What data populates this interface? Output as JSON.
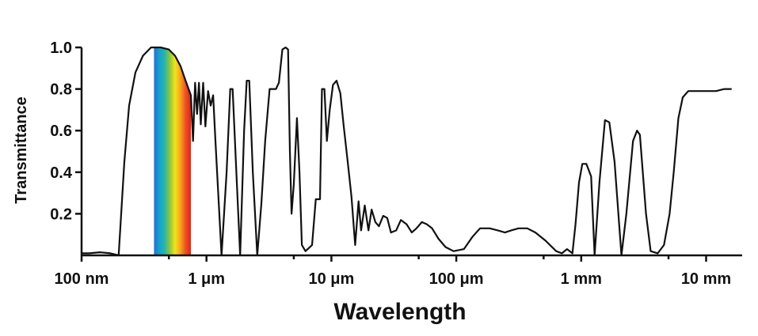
{
  "chart_data": {
    "type": "line",
    "xlabel": "Wavelength",
    "ylabel": "Transmittance",
    "x_scale": "log",
    "x_unit": "m",
    "xlim": [
      1e-07,
      0.016
    ],
    "ylim": [
      0,
      1.0
    ],
    "y_ticks": [
      {
        "value": 0.2,
        "label": "0.2"
      },
      {
        "value": 0.4,
        "label": "0.4"
      },
      {
        "value": 0.6,
        "label": "0.6"
      },
      {
        "value": 0.8,
        "label": "0.8"
      },
      {
        "value": 1.0,
        "label": "1.0"
      }
    ],
    "x_ticks": [
      {
        "value": 1e-07,
        "label": "100 nm"
      },
      {
        "value": 1e-06,
        "label": "1 μm"
      },
      {
        "value": 1e-05,
        "label": "10 μm"
      },
      {
        "value": 0.0001,
        "label": "100 μm"
      },
      {
        "value": 0.001,
        "label": "1 mm"
      },
      {
        "value": 0.01,
        "label": "10 mm"
      }
    ],
    "visible_band": {
      "range": [
        3.8e-07,
        7.5e-07
      ],
      "colors": [
        "#2a6fc9",
        "#12a3d0",
        "#2bb3a8",
        "#8ec63f",
        "#f2e41c",
        "#f7a51c",
        "#ee4f23",
        "#d7261e"
      ]
    },
    "line_color": "#111111",
    "grid": false,
    "series": [
      {
        "values": [
          [
            1e-07,
            0.01
          ],
          [
            1.15e-07,
            0.01
          ],
          [
            1.4e-07,
            0.015
          ],
          [
            1.7e-07,
            0.01
          ],
          [
            1.98e-07,
            0.0
          ],
          [
            2.2e-07,
            0.45
          ],
          [
            2.4e-07,
            0.72
          ],
          [
            2.7e-07,
            0.88
          ],
          [
            3.1e-07,
            0.96
          ],
          [
            3.6e-07,
            1.0
          ],
          [
            4.3e-07,
            1.0
          ],
          [
            5e-07,
            0.99
          ],
          [
            5.6e-07,
            0.96
          ],
          [
            6.2e-07,
            0.91
          ],
          [
            6.8e-07,
            0.84
          ],
          [
            7.5e-07,
            0.77
          ],
          [
            7.8e-07,
            0.55
          ],
          [
            8.1e-07,
            0.83
          ],
          [
            8.4e-07,
            0.68
          ],
          [
            8.7e-07,
            0.83
          ],
          [
            9e-07,
            0.63
          ],
          [
            9.4e-07,
            0.83
          ],
          [
            9.8e-07,
            0.62
          ],
          [
            1.03e-06,
            0.79
          ],
          [
            1.08e-06,
            0.72
          ],
          [
            1.13e-06,
            0.77
          ],
          [
            1.18e-06,
            0.55
          ],
          [
            1.32e-06,
            0.0
          ],
          [
            1.45e-06,
            0.4
          ],
          [
            1.55e-06,
            0.8
          ],
          [
            1.62e-06,
            0.8
          ],
          [
            1.75e-06,
            0.35
          ],
          [
            1.86e-06,
            0.0
          ],
          [
            2e-06,
            0.6
          ],
          [
            2.1e-06,
            0.84
          ],
          [
            2.2e-06,
            0.84
          ],
          [
            2.35e-06,
            0.4
          ],
          [
            2.55e-06,
            0.0
          ],
          [
            2.75e-06,
            0.25
          ],
          [
            2.95e-06,
            0.55
          ],
          [
            3.2e-06,
            0.8
          ],
          [
            3.6e-06,
            0.8
          ],
          [
            3.8e-06,
            0.83
          ],
          [
            4.05e-06,
            0.99
          ],
          [
            4.3e-06,
            1.0
          ],
          [
            4.5e-06,
            0.99
          ],
          [
            4.65e-06,
            0.5
          ],
          [
            4.8e-06,
            0.2
          ],
          [
            5e-06,
            0.34
          ],
          [
            5.3e-06,
            0.66
          ],
          [
            5.55e-06,
            0.4
          ],
          [
            5.8e-06,
            0.05
          ],
          [
            6.2e-06,
            0.02
          ],
          [
            7e-06,
            0.05
          ],
          [
            7.5e-06,
            0.27
          ],
          [
            8.1e-06,
            0.27
          ],
          [
            8.4e-06,
            0.8
          ],
          [
            8.8e-06,
            0.8
          ],
          [
            9.2e-06,
            0.55
          ],
          [
            9.7e-06,
            0.7
          ],
          [
            1.03e-05,
            0.82
          ],
          [
            1.1e-05,
            0.84
          ],
          [
            1.18e-05,
            0.78
          ],
          [
            1.25e-05,
            0.63
          ],
          [
            1.35e-05,
            0.45
          ],
          [
            1.45e-05,
            0.28
          ],
          [
            1.55e-05,
            0.05
          ],
          [
            1.65e-05,
            0.26
          ],
          [
            1.73e-05,
            0.12
          ],
          [
            1.85e-05,
            0.24
          ],
          [
            1.98e-05,
            0.12
          ],
          [
            2.1e-05,
            0.22
          ],
          [
            2.25e-05,
            0.16
          ],
          [
            2.4e-05,
            0.14
          ],
          [
            2.6e-05,
            0.19
          ],
          [
            2.8e-05,
            0.18
          ],
          [
            3e-05,
            0.11
          ],
          [
            3.3e-05,
            0.12
          ],
          [
            3.6e-05,
            0.17
          ],
          [
            4e-05,
            0.15
          ],
          [
            4.4e-05,
            0.11
          ],
          [
            4.8e-05,
            0.13
          ],
          [
            5.3e-05,
            0.16
          ],
          [
            5.8e-05,
            0.15
          ],
          [
            6.4e-05,
            0.13
          ],
          [
            7.2e-05,
            0.08
          ],
          [
            8.2e-05,
            0.04
          ],
          [
            9.5e-05,
            0.02
          ],
          [
            0.000115,
            0.03
          ],
          [
            0.000135,
            0.09
          ],
          [
            0.000155,
            0.13
          ],
          [
            0.000185,
            0.13
          ],
          [
            0.000215,
            0.12
          ],
          [
            0.000245,
            0.11
          ],
          [
            0.000275,
            0.12
          ],
          [
            0.000315,
            0.13
          ],
          [
            0.00037,
            0.13
          ],
          [
            0.00043,
            0.11
          ],
          [
            0.00052,
            0.07
          ],
          [
            0.00063,
            0.02
          ],
          [
            0.0007,
            0.01
          ],
          [
            0.00077,
            0.03
          ],
          [
            0.00085,
            0.01
          ],
          [
            0.0009,
            0.15
          ],
          [
            0.00096,
            0.35
          ],
          [
            0.00102,
            0.44
          ],
          [
            0.0011,
            0.44
          ],
          [
            0.0012,
            0.38
          ],
          [
            0.00128,
            0.0
          ],
          [
            0.0014,
            0.35
          ],
          [
            0.00155,
            0.65
          ],
          [
            0.00168,
            0.64
          ],
          [
            0.00185,
            0.45
          ],
          [
            0.0021,
            0.0
          ],
          [
            0.0023,
            0.2
          ],
          [
            0.0026,
            0.55
          ],
          [
            0.0028,
            0.6
          ],
          [
            0.00295,
            0.58
          ],
          [
            0.0033,
            0.2
          ],
          [
            0.0036,
            0.02
          ],
          [
            0.0041,
            0.01
          ],
          [
            0.0046,
            0.05
          ],
          [
            0.0051,
            0.2
          ],
          [
            0.0055,
            0.4
          ],
          [
            0.006,
            0.66
          ],
          [
            0.0065,
            0.76
          ],
          [
            0.0072,
            0.79
          ],
          [
            0.0085,
            0.79
          ],
          [
            0.01,
            0.79
          ],
          [
            0.012,
            0.79
          ],
          [
            0.014,
            0.8
          ],
          [
            0.016,
            0.8
          ]
        ]
      }
    ]
  }
}
